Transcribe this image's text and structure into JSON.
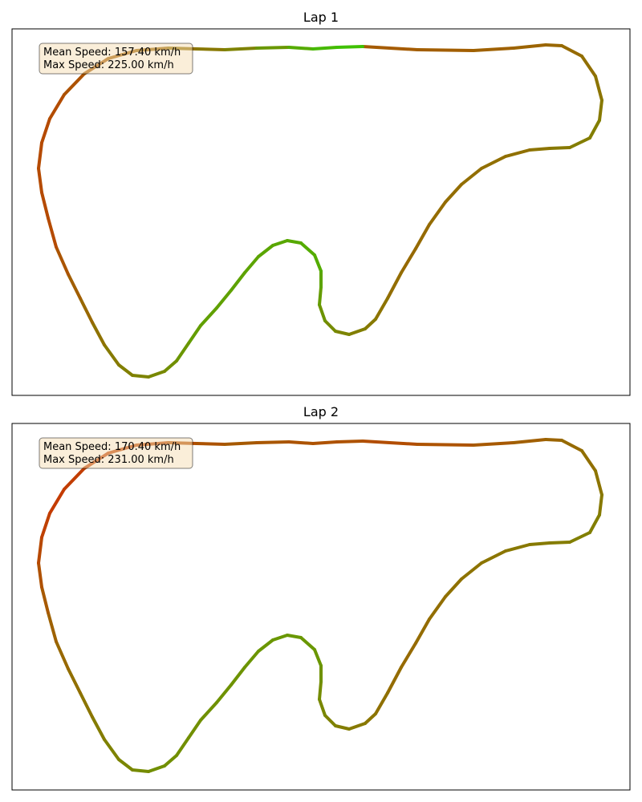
{
  "chart_data": [
    {
      "type": "line",
      "title": "Lap 1",
      "stats": {
        "mean_speed_label": "Mean Speed: 157.40 km/h",
        "max_speed_label": "Max Speed: 225.00 km/h"
      },
      "grid": false,
      "colormap": [
        "#cc3300",
        "#808000",
        "#33cc00"
      ]
    },
    {
      "type": "line",
      "title": "Lap 2",
      "stats": {
        "mean_speed_label": "Mean Speed: 170.40 km/h",
        "max_speed_label": "Max Speed: 231.00 km/h"
      },
      "grid": false,
      "colormap": [
        "#cc3300",
        "#808000",
        "#33cc00"
      ]
    }
  ]
}
